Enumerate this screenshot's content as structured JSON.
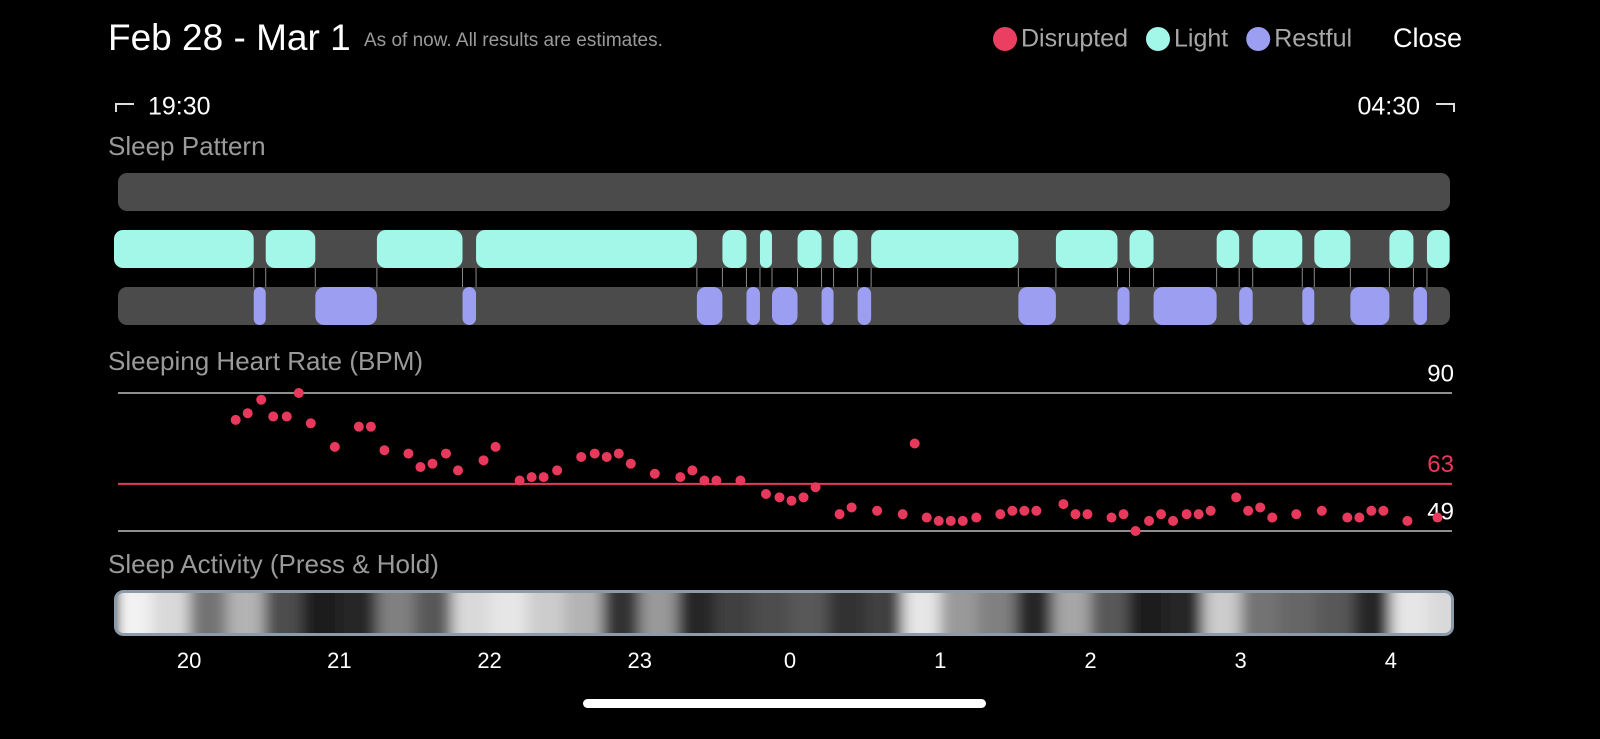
{
  "header": {
    "title": "Feb 28 - Mar 1",
    "subtitle": "As of now. All results are estimates.",
    "close": "Close"
  },
  "time_range": {
    "start": "19:30",
    "end": "04:30"
  },
  "chart_data": [
    {
      "type": "timeline",
      "title": "Sleep Pattern",
      "xlim": [
        19.5,
        28.4
      ],
      "series": [
        {
          "name": "Disrupted",
          "color": "#ea3f60",
          "segments": []
        },
        {
          "name": "Light",
          "color": "#a2f7e8",
          "segments": [
            [
              19.5,
              20.43
            ],
            [
              20.51,
              20.84
            ],
            [
              21.25,
              21.82
            ],
            [
              21.91,
              23.38
            ],
            [
              23.55,
              23.71
            ],
            [
              23.8,
              23.88
            ],
            [
              24.05,
              24.21
            ],
            [
              24.29,
              24.45
            ],
            [
              24.54,
              25.52
            ],
            [
              25.77,
              26.18
            ],
            [
              26.26,
              26.42
            ],
            [
              26.84,
              26.99
            ],
            [
              27.08,
              27.41
            ],
            [
              27.49,
              27.73
            ],
            [
              27.99,
              28.15
            ],
            [
              28.24,
              28.39
            ]
          ]
        },
        {
          "name": "Restful",
          "color": "#9c9ef2",
          "segments": [
            [
              20.43,
              20.51
            ],
            [
              20.84,
              21.25
            ],
            [
              21.82,
              21.91
            ],
            [
              23.38,
              23.55
            ],
            [
              23.71,
              23.8
            ],
            [
              23.88,
              24.05
            ],
            [
              24.21,
              24.29
            ],
            [
              24.45,
              24.54
            ],
            [
              25.52,
              25.77
            ],
            [
              26.18,
              26.26
            ],
            [
              26.42,
              26.84
            ],
            [
              26.99,
              27.08
            ],
            [
              27.41,
              27.49
            ],
            [
              27.73,
              27.99
            ],
            [
              28.15,
              28.24
            ]
          ]
        }
      ]
    },
    {
      "type": "scatter",
      "title": "Sleeping Heart Rate (BPM)",
      "color": "#e8395d",
      "xlim": [
        19.5,
        28.4
      ],
      "ylim": [
        49,
        90
      ],
      "yticks": [
        49,
        90
      ],
      "average": 63,
      "average_color": "#e8395d",
      "x": [
        20.31,
        20.39,
        20.48,
        20.56,
        20.65,
        20.73,
        20.81,
        20.97,
        21.13,
        21.21,
        21.3,
        21.46,
        21.54,
        21.62,
        21.71,
        21.79,
        21.96,
        22.04,
        22.2,
        22.28,
        22.36,
        22.45,
        22.61,
        22.7,
        22.78,
        22.86,
        22.94,
        23.1,
        23.27,
        23.35,
        23.43,
        23.51,
        23.67,
        23.84,
        23.93,
        24.01,
        24.09,
        24.17,
        24.33,
        24.41,
        24.58,
        24.75,
        24.83,
        24.91,
        24.99,
        25.07,
        25.15,
        25.24,
        25.4,
        25.48,
        25.56,
        25.64,
        25.82,
        25.9,
        25.98,
        26.14,
        26.22,
        26.3,
        26.39,
        26.47,
        26.55,
        26.64,
        26.72,
        26.8,
        26.97,
        27.05,
        27.13,
        27.21,
        27.37,
        27.54,
        27.71,
        27.79,
        27.87,
        27.95,
        28.11,
        28.31
      ],
      "values": [
        82,
        84,
        88,
        83,
        83,
        90,
        81,
        74,
        80,
        80,
        73,
        72,
        68,
        69,
        72,
        67,
        70,
        74,
        64,
        65,
        65,
        67,
        71,
        72,
        71,
        72,
        69,
        66,
        65,
        67,
        64,
        64,
        64,
        60,
        59,
        58,
        59,
        62,
        54,
        56,
        55,
        54,
        75,
        53,
        52,
        52,
        52,
        53,
        54,
        55,
        55,
        55,
        57,
        54,
        54,
        53,
        54,
        49,
        52,
        54,
        52,
        54,
        54,
        55,
        59,
        55,
        56,
        53,
        54,
        55,
        53,
        53,
        55,
        55,
        52,
        53
      ]
    },
    {
      "type": "heatmap",
      "title": "Sleep Activity (Press & Hold)",
      "xlim": [
        19.5,
        28.4
      ],
      "x": [
        19.5,
        19.75,
        20,
        20.25,
        20.5,
        20.75,
        21,
        21.25,
        21.5,
        21.75,
        22,
        22.25,
        22.5,
        22.75,
        23,
        23.25,
        23.5,
        23.75,
        24,
        24.25,
        24.5,
        24.75,
        25,
        25.25,
        25.5,
        25.75,
        26,
        26.25,
        26.5,
        26.75,
        27,
        27.25,
        27.5,
        27.75,
        28,
        28.25
      ],
      "values": [
        95,
        85,
        45,
        70,
        30,
        10,
        15,
        50,
        35,
        85,
        90,
        80,
        70,
        20,
        60,
        15,
        25,
        30,
        35,
        20,
        25,
        90,
        60,
        50,
        15,
        65,
        35,
        10,
        15,
        80,
        45,
        40,
        35,
        15,
        90,
        85
      ],
      "xticks": [
        20,
        21,
        22,
        23,
        {
          "value": 24,
          "label": "0"
        },
        {
          "value": 25,
          "label": "1"
        },
        {
          "value": 26,
          "label": "2"
        },
        {
          "value": 27,
          "label": "3"
        },
        {
          "value": 28,
          "label": "4"
        }
      ]
    }
  ]
}
